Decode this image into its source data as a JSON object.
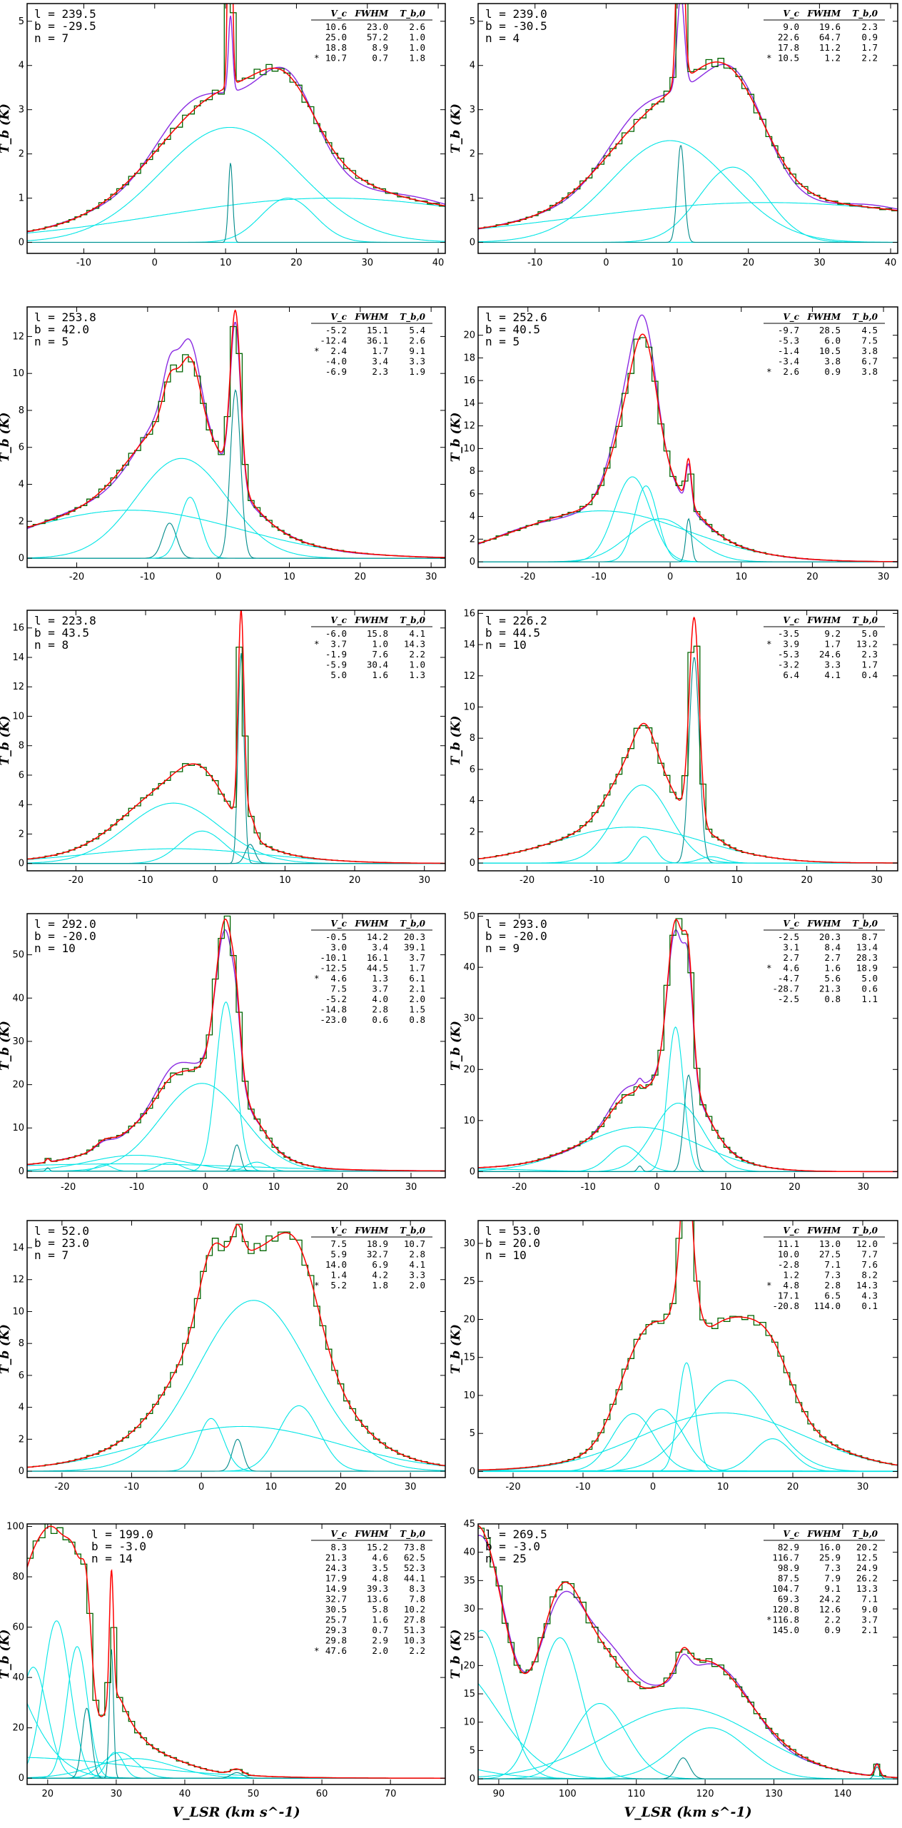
{
  "colors": {
    "histogram": "#006400",
    "model": "#ff0000",
    "alt": "#8a2be2",
    "component": "#00e5e5",
    "narrow": "#008b8b",
    "frame": "#000000"
  },
  "labels": {
    "ylabel": "T_b (K)",
    "xlabel": "V_LSR (km s^-1)"
  },
  "table_header": {
    "vc": "V_c",
    "fwhm": "FWHM",
    "tb": "T_b,0"
  },
  "chart_data": [
    {
      "type": "line",
      "id": "p1",
      "l": "239.5",
      "b": "-29.5",
      "n": "7",
      "xlim": [
        -18,
        41
      ],
      "ylim": [
        -0.25,
        5.4
      ],
      "xticks": [
        -10,
        0,
        10,
        20,
        30,
        40
      ],
      "yticks": [
        0,
        1,
        2,
        3,
        4,
        5
      ],
      "table": [
        [
          "",
          "10.6",
          "23.0",
          "2.6"
        ],
        [
          "",
          "25.0",
          "57.2",
          "1.0"
        ],
        [
          "",
          "18.8",
          "8.9",
          "1.0"
        ],
        [
          "*",
          "10.7",
          "0.7",
          "1.8"
        ]
      ],
      "comps": [
        [
          10.6,
          23.0,
          2.6
        ],
        [
          25.0,
          57.2,
          1.0
        ],
        [
          18.8,
          8.9,
          1.0
        ],
        [
          10.7,
          0.7,
          1.8
        ]
      ],
      "peak": {
        "v": 10.6,
        "h": 5.3,
        "w": 0.6
      },
      "purple": true
    },
    {
      "type": "line",
      "id": "p2",
      "l": "239.0",
      "b": "-30.5",
      "n": "4",
      "xlim": [
        -18,
        41
      ],
      "ylim": [
        -0.25,
        5.4
      ],
      "xticks": [
        -10,
        0,
        10,
        20,
        30,
        40
      ],
      "yticks": [
        0,
        1,
        2,
        3,
        4,
        5
      ],
      "table": [
        [
          "",
          "9.0",
          "19.6",
          "2.3"
        ],
        [
          "",
          "22.6",
          "64.7",
          "0.9"
        ],
        [
          "",
          "17.8",
          "11.2",
          "1.7"
        ],
        [
          "*",
          "10.5",
          "1.2",
          "2.2"
        ]
      ],
      "comps": [
        [
          9.0,
          19.6,
          2.3
        ],
        [
          22.6,
          64.7,
          0.9
        ],
        [
          17.8,
          11.2,
          1.7
        ],
        [
          10.5,
          1.2,
          2.2
        ]
      ],
      "peak": {
        "v": 10.4,
        "h": 5.2,
        "w": 0.9
      },
      "purple": true
    },
    {
      "type": "line",
      "id": "p3",
      "l": "253.8",
      "b": "42.0",
      "n": "5",
      "xlim": [
        -27,
        32
      ],
      "ylim": [
        -0.5,
        13.6
      ],
      "xticks": [
        -20,
        -10,
        0,
        10,
        20,
        30
      ],
      "yticks": [
        0,
        2,
        4,
        6,
        8,
        10,
        12
      ],
      "table": [
        [
          "",
          "-5.2",
          "15.1",
          "5.4"
        ],
        [
          "",
          "-12.4",
          "36.1",
          "2.6"
        ],
        [
          "*",
          "2.4",
          "1.7",
          "9.1"
        ],
        [
          "",
          "-4.0",
          "3.4",
          "3.3"
        ],
        [
          "",
          "-6.9",
          "2.3",
          "1.9"
        ]
      ],
      "comps": [
        [
          -5.2,
          15.1,
          5.4
        ],
        [
          -12.4,
          36.1,
          2.6
        ],
        [
          2.4,
          1.7,
          9.1
        ],
        [
          -4.0,
          3.4,
          3.3
        ],
        [
          -6.9,
          2.3,
          1.9
        ]
      ],
      "peak": null,
      "purple": true
    },
    {
      "type": "line",
      "id": "p4",
      "l": "252.6",
      "b": "40.5",
      "n": "5",
      "xlim": [
        -27,
        32
      ],
      "ylim": [
        -0.5,
        22.5
      ],
      "xticks": [
        -20,
        -10,
        0,
        10,
        20,
        30
      ],
      "yticks": [
        0,
        2,
        4,
        6,
        8,
        10,
        12,
        14,
        16,
        18,
        20
      ],
      "table": [
        [
          "",
          "-9.7",
          "28.5",
          "4.5"
        ],
        [
          "",
          "-5.3",
          "6.0",
          "7.5"
        ],
        [
          "",
          "-1.4",
          "10.5",
          "3.8"
        ],
        [
          "",
          "-3.4",
          "3.8",
          "6.7"
        ],
        [
          "*",
          "2.6",
          "0.9",
          "3.8"
        ]
      ],
      "comps": [
        [
          -9.7,
          28.5,
          4.5
        ],
        [
          -5.3,
          6.0,
          7.5
        ],
        [
          -1.4,
          10.5,
          3.8
        ],
        [
          -3.4,
          3.8,
          6.7
        ],
        [
          2.6,
          0.9,
          3.8
        ]
      ],
      "peak": null,
      "purple": true
    },
    {
      "type": "line",
      "id": "p5",
      "l": "223.8",
      "b": "43.5",
      "n": "8",
      "xlim": [
        -27,
        33
      ],
      "ylim": [
        -0.5,
        17.2
      ],
      "xticks": [
        -20,
        -10,
        0,
        10,
        20,
        30
      ],
      "yticks": [
        0,
        2,
        4,
        6,
        8,
        10,
        12,
        14,
        16
      ],
      "table": [
        [
          "",
          "-6.0",
          "15.8",
          "4.1"
        ],
        [
          "*",
          "3.7",
          "1.0",
          "14.3"
        ],
        [
          "",
          "-1.9",
          "7.6",
          "2.2"
        ],
        [
          "",
          "-5.9",
          "30.4",
          "1.0"
        ],
        [
          "",
          "5.0",
          "1.6",
          "1.3"
        ]
      ],
      "comps": [
        [
          -6.0,
          15.8,
          4.1
        ],
        [
          3.7,
          1.0,
          14.3
        ],
        [
          -1.9,
          7.6,
          2.2
        ],
        [
          -5.9,
          30.4,
          1.0
        ],
        [
          5.0,
          1.6,
          1.3
        ]
      ],
      "peak": null,
      "purple": false
    },
    {
      "type": "line",
      "id": "p6",
      "l": "226.2",
      "b": "44.5",
      "n": "10",
      "xlim": [
        -27,
        33
      ],
      "ylim": [
        -0.5,
        16.2
      ],
      "xticks": [
        -20,
        -10,
        0,
        10,
        20,
        30
      ],
      "yticks": [
        0,
        2,
        4,
        6,
        8,
        10,
        12,
        14,
        16
      ],
      "table": [
        [
          "",
          "-3.5",
          "9.2",
          "5.0"
        ],
        [
          "*",
          "3.9",
          "1.7",
          "13.2"
        ],
        [
          "",
          "-5.3",
          "24.6",
          "2.3"
        ],
        [
          "",
          "-3.2",
          "3.3",
          "1.7"
        ],
        [
          "",
          "6.4",
          "4.1",
          "0.4"
        ]
      ],
      "comps": [
        [
          -3.5,
          9.2,
          5.0
        ],
        [
          3.9,
          1.7,
          13.2
        ],
        [
          -5.3,
          24.6,
          2.3
        ],
        [
          -3.2,
          3.3,
          1.7
        ],
        [
          6.4,
          4.1,
          0.4
        ]
      ],
      "peak": null,
      "purple": false
    },
    {
      "type": "line",
      "id": "p7",
      "l": "292.0",
      "b": "-20.0",
      "n": "10",
      "xlim": [
        -26,
        35
      ],
      "ylim": [
        -1.5,
        59.5
      ],
      "xticks": [
        -20,
        -10,
        0,
        10,
        20,
        30
      ],
      "yticks": [
        0,
        10,
        20,
        30,
        40,
        50
      ],
      "table": [
        [
          "",
          "-0.5",
          "14.2",
          "20.3"
        ],
        [
          "",
          "3.0",
          "3.4",
          "39.1"
        ],
        [
          "",
          "-10.1",
          "16.1",
          "3.7"
        ],
        [
          "",
          "-12.5",
          "44.5",
          "1.7"
        ],
        [
          "*",
          "4.6",
          "1.3",
          "6.1"
        ],
        [
          "",
          "7.5",
          "3.7",
          "2.1"
        ],
        [
          "",
          "-5.2",
          "4.0",
          "2.0"
        ],
        [
          "",
          "-14.8",
          "2.8",
          "1.5"
        ],
        [
          "",
          "-23.0",
          "0.6",
          "0.8"
        ]
      ],
      "comps": [
        [
          -0.5,
          14.2,
          20.3
        ],
        [
          3.0,
          3.4,
          39.1
        ],
        [
          -10.1,
          16.1,
          3.7
        ],
        [
          -12.5,
          44.5,
          1.7
        ],
        [
          4.6,
          1.3,
          6.1
        ],
        [
          7.5,
          3.7,
          2.1
        ],
        [
          -5.2,
          4.0,
          2.0
        ],
        [
          -14.8,
          2.8,
          1.5
        ],
        [
          -23.0,
          0.6,
          0.8
        ]
      ],
      "peak": null,
      "purple": true
    },
    {
      "type": "line",
      "id": "p8",
      "l": "293.0",
      "b": "-20.0",
      "n": "9",
      "xlim": [
        -26,
        35
      ],
      "ylim": [
        -1.2,
        50.5
      ],
      "xticks": [
        -20,
        -10,
        0,
        10,
        20,
        30
      ],
      "yticks": [
        0,
        10,
        20,
        30,
        40,
        50
      ],
      "table": [
        [
          "",
          "-2.5",
          "20.3",
          "8.7"
        ],
        [
          "",
          "3.1",
          "8.4",
          "13.4"
        ],
        [
          "",
          "2.7",
          "2.7",
          "28.3"
        ],
        [
          "*",
          "4.6",
          "1.6",
          "18.9"
        ],
        [
          "",
          "-4.7",
          "5.6",
          "5.0"
        ],
        [
          "",
          "-28.7",
          "21.3",
          "0.6"
        ],
        [
          "",
          "-2.5",
          "0.8",
          "1.1"
        ]
      ],
      "comps": [
        [
          -2.5,
          20.3,
          8.7
        ],
        [
          3.1,
          8.4,
          13.4
        ],
        [
          2.7,
          2.7,
          28.3
        ],
        [
          4.6,
          1.6,
          18.9
        ],
        [
          -4.7,
          5.6,
          5.0
        ],
        [
          -28.7,
          21.3,
          0.6
        ],
        [
          -2.5,
          0.8,
          1.1
        ]
      ],
      "peak": null,
      "purple": true
    },
    {
      "type": "line",
      "id": "p9",
      "l": "52.0",
      "b": "23.0",
      "n": "7",
      "xlim": [
        -25,
        35
      ],
      "ylim": [
        -0.4,
        15.7
      ],
      "xticks": [
        -20,
        -10,
        0,
        10,
        20,
        30
      ],
      "yticks": [
        0,
        2,
        4,
        6,
        8,
        10,
        12,
        14
      ],
      "table": [
        [
          "",
          "7.5",
          "18.9",
          "10.7"
        ],
        [
          "",
          "5.9",
          "32.7",
          "2.8"
        ],
        [
          "",
          "14.0",
          "6.9",
          "4.1"
        ],
        [
          "",
          "1.4",
          "4.2",
          "3.3"
        ],
        [
          "*",
          "5.2",
          "1.8",
          "2.0"
        ]
      ],
      "comps": [
        [
          7.5,
          18.9,
          10.7
        ],
        [
          5.9,
          32.7,
          2.8
        ],
        [
          14.0,
          6.9,
          4.1
        ],
        [
          1.4,
          4.2,
          3.3
        ],
        [
          5.2,
          1.8,
          2.0
        ]
      ],
      "peak": null,
      "purple": false
    },
    {
      "type": "line",
      "id": "p10",
      "l": "53.0",
      "b": "20.0",
      "n": "10",
      "xlim": [
        -25,
        35
      ],
      "ylim": [
        -0.8,
        33
      ],
      "xticks": [
        -20,
        -10,
        0,
        10,
        20,
        30
      ],
      "yticks": [
        0,
        5,
        10,
        15,
        20,
        25,
        30
      ],
      "table": [
        [
          "",
          "11.1",
          "13.0",
          "12.0"
        ],
        [
          "",
          "10.0",
          "27.5",
          "7.7"
        ],
        [
          "",
          "-2.8",
          "7.1",
          "7.6"
        ],
        [
          "",
          "1.2",
          "7.3",
          "8.2"
        ],
        [
          "*",
          "4.8",
          "2.8",
          "14.3"
        ],
        [
          "",
          "17.1",
          "6.5",
          "4.3"
        ],
        [
          "",
          "-20.8",
          "114.0",
          "0.1"
        ]
      ],
      "comps": [
        [
          11.1,
          13.0,
          12.0
        ],
        [
          10.0,
          27.5,
          7.7
        ],
        [
          -2.8,
          7.1,
          7.6
        ],
        [
          1.2,
          7.3,
          8.2
        ],
        [
          4.8,
          2.8,
          14.3
        ],
        [
          17.1,
          6.5,
          4.3
        ],
        [
          -20.8,
          114.0,
          0.1
        ]
      ],
      "peak": {
        "v": 4.8,
        "h": 12.0,
        "w": 1.4
      },
      "purple": false
    },
    {
      "type": "line",
      "id": "p11",
      "l": "199.0",
      "b": "-3.0",
      "n": "14",
      "xlim": [
        17,
        78
      ],
      "ylim": [
        -2.5,
        101
      ],
      "xticks": [
        20,
        30,
        40,
        50,
        60,
        70
      ],
      "yticks": [
        0,
        20,
        40,
        60,
        80,
        100
      ],
      "table": [
        [
          "",
          "8.3",
          "15.2",
          "73.8"
        ],
        [
          "",
          "21.3",
          "4.6",
          "62.5"
        ],
        [
          "",
          "24.3",
          "3.5",
          "52.3"
        ],
        [
          "",
          "17.9",
          "4.8",
          "44.1"
        ],
        [
          "",
          "14.9",
          "39.3",
          "8.3"
        ],
        [
          "",
          "32.7",
          "13.6",
          "7.8"
        ],
        [
          "",
          "30.5",
          "5.8",
          "10.2"
        ],
        [
          "",
          "25.7",
          "1.6",
          "27.8"
        ],
        [
          "",
          "29.3",
          "0.7",
          "51.3"
        ],
        [
          "",
          "29.8",
          "2.9",
          "10.3"
        ],
        [
          "*",
          "47.6",
          "2.0",
          "2.2"
        ]
      ],
      "comps": [
        [
          8.3,
          15.2,
          73.8
        ],
        [
          21.3,
          4.6,
          62.5
        ],
        [
          24.3,
          3.5,
          52.3
        ],
        [
          17.9,
          4.8,
          44.1
        ],
        [
          14.9,
          39.3,
          8.3
        ],
        [
          32.7,
          13.6,
          7.8
        ],
        [
          30.5,
          5.8,
          10.2
        ],
        [
          25.7,
          1.6,
          27.8
        ],
        [
          29.3,
          0.7,
          51.3
        ],
        [
          29.8,
          2.9,
          10.3
        ],
        [
          47.6,
          2.0,
          2.2
        ]
      ],
      "peak": null,
      "purple": false
    },
    {
      "type": "line",
      "id": "p12",
      "l": "269.5",
      "b": "-3.0",
      "n": "25",
      "xlim": [
        87,
        148
      ],
      "ylim": [
        -1,
        45
      ],
      "xticks": [
        90,
        100,
        110,
        120,
        130,
        140
      ],
      "yticks": [
        0,
        5,
        10,
        15,
        20,
        25,
        30,
        35,
        40,
        45
      ],
      "table": [
        [
          "",
          "82.9",
          "16.0",
          "20.2"
        ],
        [
          "",
          "116.7",
          "25.9",
          "12.5"
        ],
        [
          "",
          "98.9",
          "7.3",
          "24.9"
        ],
        [
          "",
          "87.5",
          "7.9",
          "26.2"
        ],
        [
          "",
          "104.7",
          "9.1",
          "13.3"
        ],
        [
          "",
          "69.3",
          "24.2",
          "7.1"
        ],
        [
          "",
          "120.8",
          "12.6",
          "9.0"
        ],
        [
          "*",
          "116.8",
          "2.2",
          "3.7"
        ],
        [
          "",
          "145.0",
          "0.9",
          "2.1"
        ]
      ],
      "comps": [
        [
          82.9,
          16.0,
          20.2
        ],
        [
          116.7,
          25.9,
          12.5
        ],
        [
          98.9,
          7.3,
          24.9
        ],
        [
          87.5,
          7.9,
          26.2
        ],
        [
          104.7,
          9.1,
          13.3
        ],
        [
          69.3,
          24.2,
          7.1
        ],
        [
          120.8,
          12.6,
          9.0
        ],
        [
          116.8,
          2.2,
          3.7
        ],
        [
          145.0,
          0.9,
          2.1
        ]
      ],
      "peak": null,
      "purple": true
    }
  ]
}
